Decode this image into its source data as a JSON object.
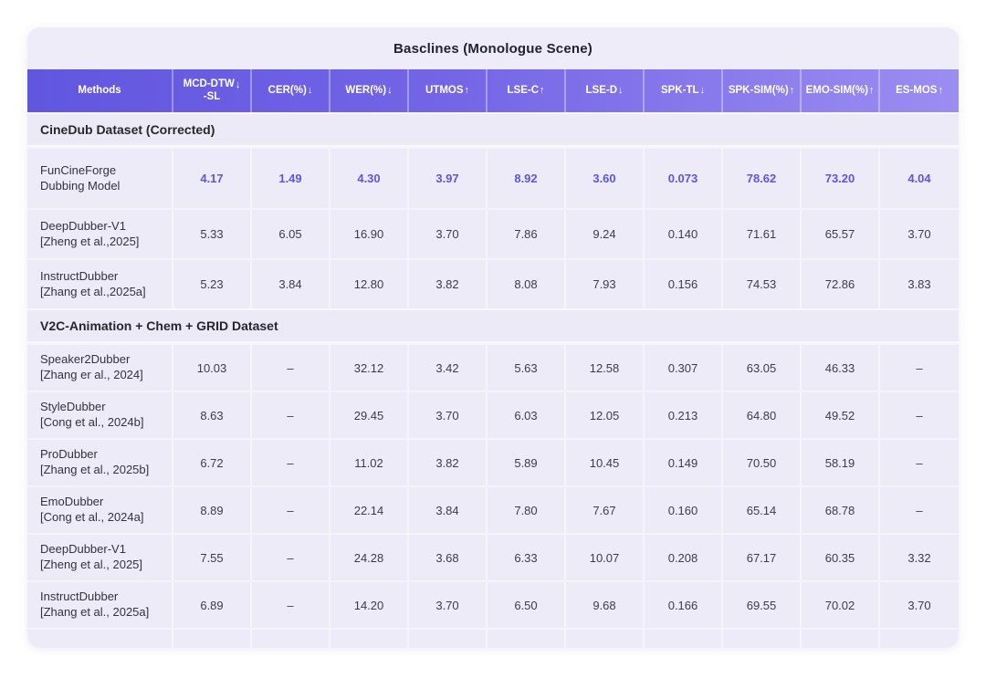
{
  "title": "Basclines (Monologue Scene)",
  "colors": {
    "accent_gradient_start": "#6156df",
    "accent_gradient_end": "#9c8df1",
    "card_background": "#edebf7",
    "highlight_value": "#6055dd",
    "header_text": "#ffffff"
  },
  "chart_data": {
    "type": "table",
    "title": "Basclines (Monologue Scene)",
    "legend_position": "none",
    "grid": "column-separators",
    "columns": [
      {
        "label": "Methods",
        "sub": "",
        "arrow": ""
      },
      {
        "label": "MCD-DTW",
        "sub": "-SL",
        "arrow": "down"
      },
      {
        "label": "CER(%)",
        "sub": "",
        "arrow": "down"
      },
      {
        "label": "WER(%)",
        "sub": "",
        "arrow": "down"
      },
      {
        "label": "UTMOS",
        "sub": "",
        "arrow": "up"
      },
      {
        "label": "LSE-C",
        "sub": "",
        "arrow": "up"
      },
      {
        "label": "LSE-D",
        "sub": "",
        "arrow": "down"
      },
      {
        "label": "SPK-TL",
        "sub": "",
        "arrow": "down"
      },
      {
        "label": "SPK-SIM(%)",
        "sub": "",
        "arrow": "up"
      },
      {
        "label": "EMO-SIM(%)",
        "sub": "",
        "arrow": "up"
      },
      {
        "label": "ES-MOS",
        "sub": "",
        "arrow": "up"
      }
    ],
    "sections": [
      {
        "heading": "CineDub Dataset (Corrected)",
        "rows": [
          {
            "method_line1": "FunCineForge",
            "method_line2": "Dubbing Model",
            "highlight": true,
            "values": [
              "4.17",
              "1.49",
              "4.30",
              "3.97",
              "8.92",
              "3.60",
              "0.073",
              "78.62",
              "73.20",
              "4.04"
            ]
          },
          {
            "method_line1": "DeepDubber-V1",
            "method_line2": "[Zheng et al.,2025]",
            "highlight": false,
            "values": [
              "5.33",
              "6.05",
              "16.90",
              "3.70",
              "7.86",
              "9.24",
              "0.140",
              "71.61",
              "65.57",
              "3.70"
            ]
          },
          {
            "method_line1": "InstructDubber",
            "method_line2": "[Zhang et al.,2025a]",
            "highlight": false,
            "values": [
              "5.23",
              "3.84",
              "12.80",
              "3.82",
              "8.08",
              "7.93",
              "0.156",
              "74.53",
              "72.86",
              "3.83"
            ]
          }
        ]
      },
      {
        "heading": "V2C-Animation + Chem + GRID Dataset",
        "rows": [
          {
            "method_line1": "Speaker2Dubber",
            "method_line2": "[Zhang er al., 2024]",
            "highlight": false,
            "values": [
              "10.03",
              "–",
              "32.12",
              "3.42",
              "5.63",
              "12.58",
              "0.307",
              "63.05",
              "46.33",
              "–"
            ]
          },
          {
            "method_line1": "StyleDubber",
            "method_line2": "[Cong et al., 2024b]",
            "highlight": false,
            "values": [
              "8.63",
              "–",
              "29.45",
              "3.70",
              "6.03",
              "12.05",
              "0.213",
              "64.80",
              "49.52",
              "–"
            ]
          },
          {
            "method_line1": "ProDubber",
            "method_line2": "[Zhang et al., 2025b]",
            "highlight": false,
            "values": [
              "6.72",
              "–",
              "11.02",
              "3.82",
              "5.89",
              "10.45",
              "0.149",
              "70.50",
              "58.19",
              "–"
            ]
          },
          {
            "method_line1": "EmoDubber",
            "method_line2": "[Cong et al., 2024a]",
            "highlight": false,
            "values": [
              "8.89",
              "–",
              "22.14",
              "3.84",
              "7.80",
              "7.67",
              "0.160",
              "65.14",
              "68.78",
              "–"
            ]
          },
          {
            "method_line1": "DeepDubber-V1",
            "method_line2": "[Zheng et al., 2025]",
            "highlight": false,
            "values": [
              "7.55",
              "–",
              "24.28",
              "3.68",
              "6.33",
              "10.07",
              "0.208",
              "67.17",
              "60.35",
              "3.32"
            ]
          },
          {
            "method_line1": "InstructDubber",
            "method_line2": "[Zhang et al., 2025a]",
            "highlight": false,
            "values": [
              "6.89",
              "–",
              "14.20",
              "3.70",
              "6.50",
              "9.68",
              "0.166",
              "69.55",
              "70.02",
              "3.70"
            ]
          }
        ]
      }
    ]
  }
}
